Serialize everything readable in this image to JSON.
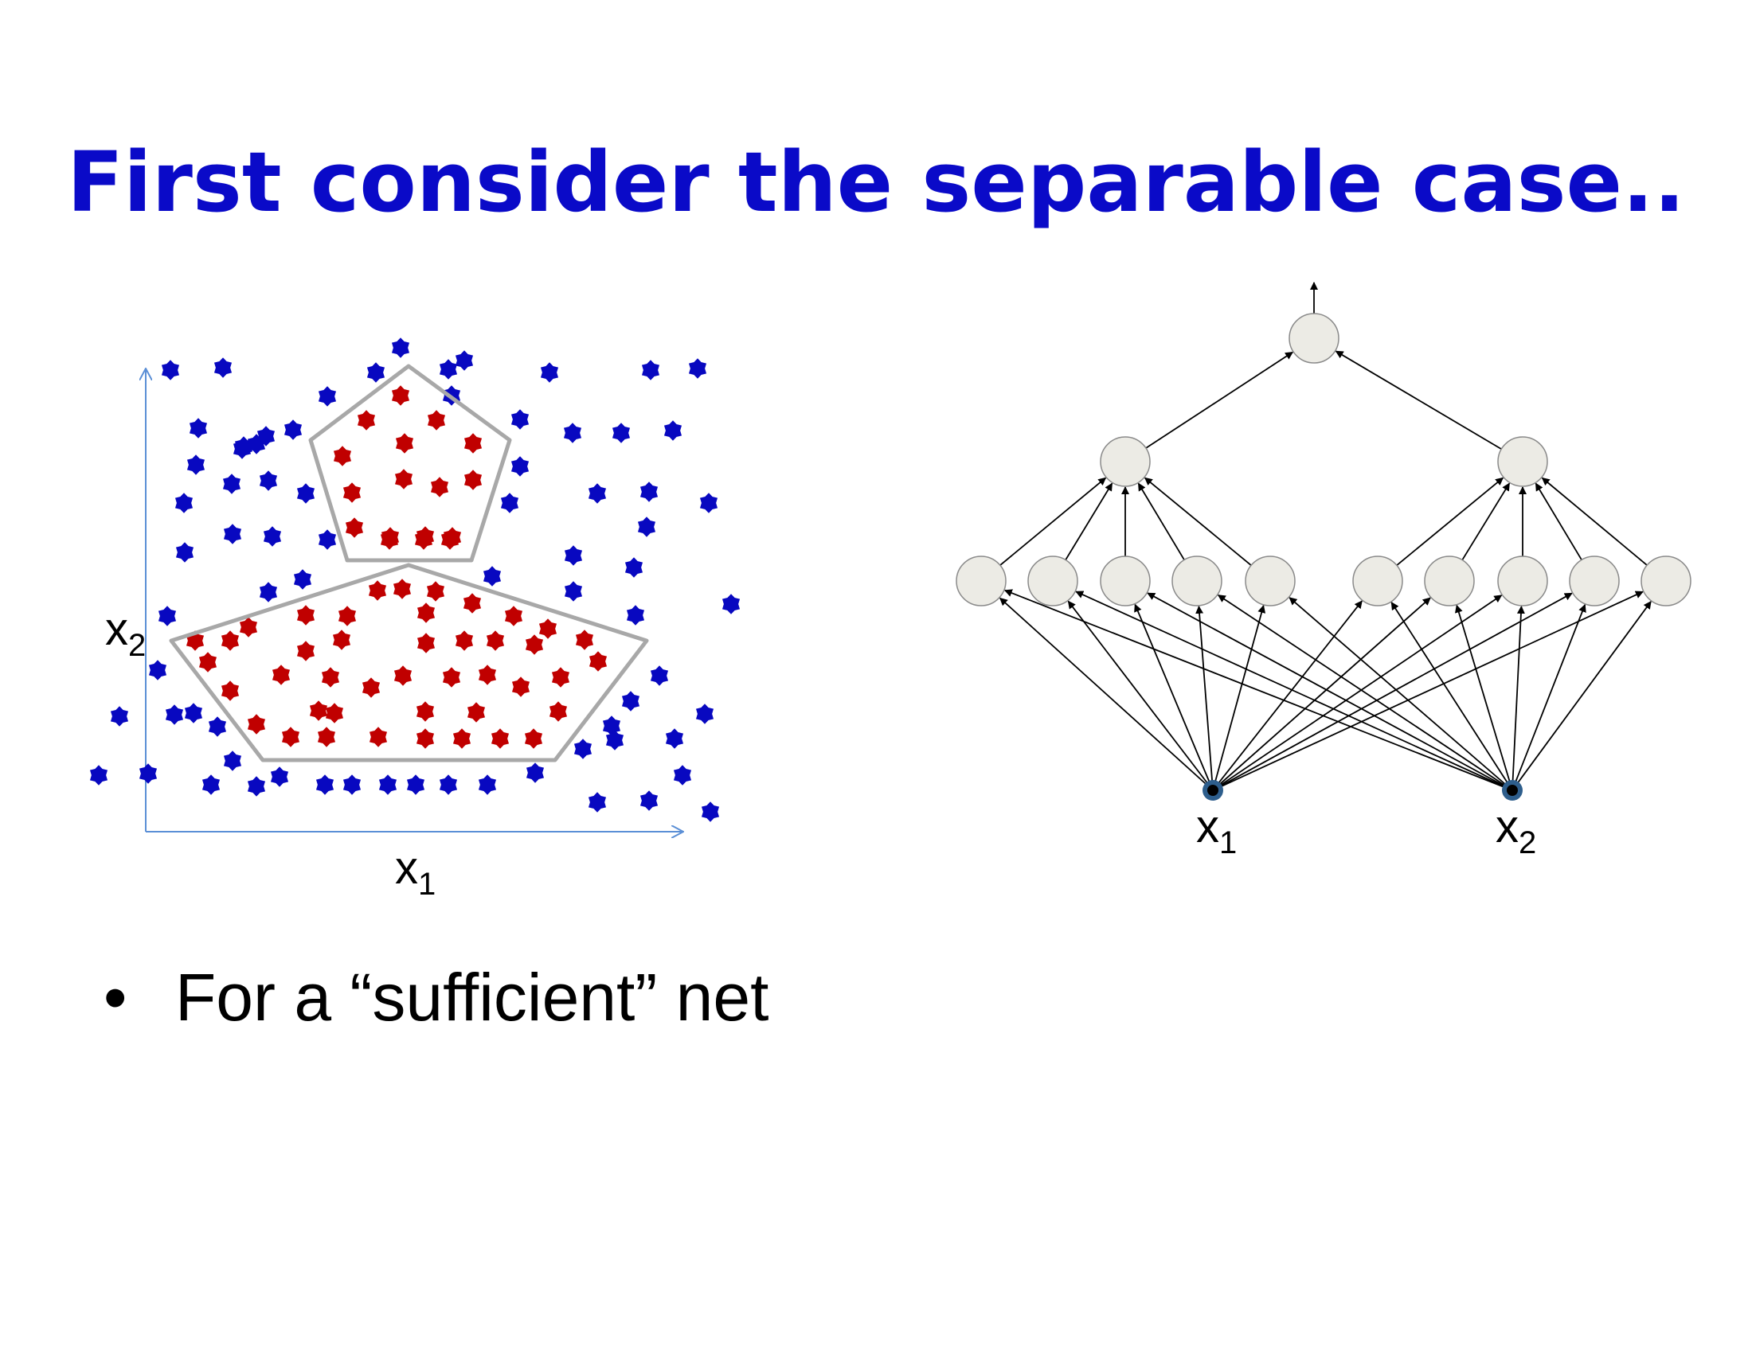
{
  "slide": {
    "title": "First consider the separable case..",
    "bullet": "For a “sufficient” net",
    "bullet_symbol": "•"
  },
  "scatter": {
    "x_axis_label": "x",
    "x_axis_sub": "1",
    "y_axis_label": "x",
    "y_axis_sub": "2",
    "colors": {
      "class_a": "#0808C0",
      "class_b": "#C00000",
      "boundary": "#A8A8A8",
      "axis": "#5B8FD6"
    }
  },
  "network": {
    "inputs": [
      {
        "label": "x",
        "sub": "1"
      },
      {
        "label": "x",
        "sub": "2"
      }
    ],
    "hidden_layer_1_count": 10,
    "hidden_layer_2_count": 2,
    "output_count": 1,
    "colors": {
      "node_fill": "#ECEBE5",
      "node_stroke": "#8A8A8A",
      "input_ring": "#2E5E8C"
    }
  }
}
